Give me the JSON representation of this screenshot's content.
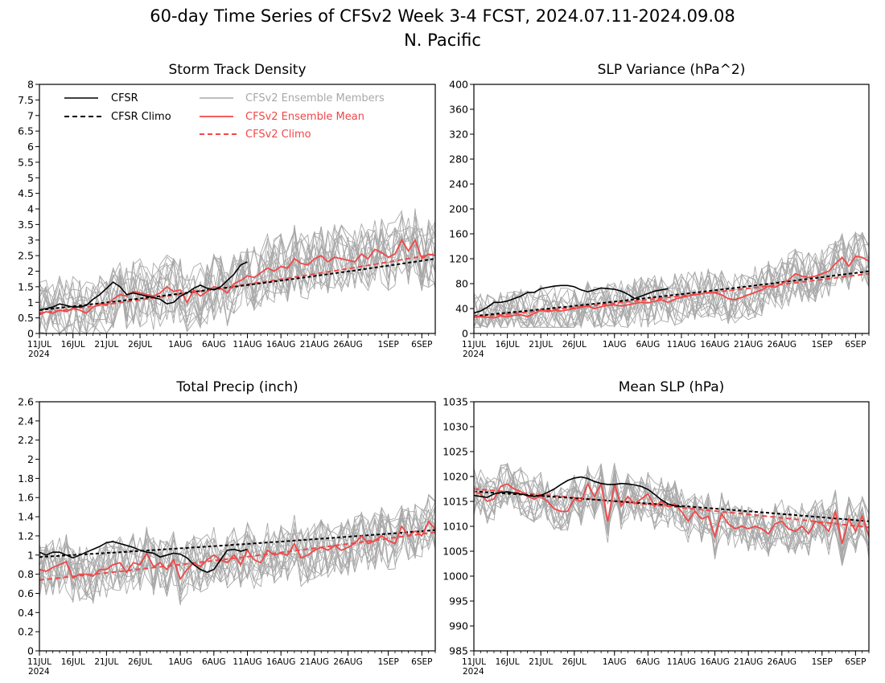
{
  "figure": {
    "title_line1": "60-day Time Series of CFSv2 Week 3-4 FCST, 2024.07.11-2024.09.08",
    "title_line2": "N. Pacific"
  },
  "legend": {
    "cfsr": "CFSR",
    "cfsr_climo": "CFSR Climo",
    "ensemble_members": "CFSv2 Ensemble Members",
    "ensemble_mean": "CFSv2 Ensemble Mean",
    "cfsv2_climo": "CFSv2 Climo"
  },
  "colors": {
    "cfsr": "#000000",
    "climo": "#000000",
    "members": "#a8a8a8",
    "mean": "#f04848",
    "cfsv2_climo": "#f04848"
  },
  "x_axis": {
    "tick_labels": [
      "11JUL",
      "16JUL",
      "21JUL",
      "26JUL",
      "1AUG",
      "6AUG",
      "11AUG",
      "16AUG",
      "21AUG",
      "26AUG",
      "1SEP",
      "6SEP"
    ],
    "tick_days": [
      0,
      5,
      10,
      15,
      21,
      26,
      31,
      36,
      41,
      46,
      52,
      57
    ],
    "year_label": "2024"
  },
  "chart_data": [
    {
      "type": "line",
      "title": "Storm Track Density",
      "x": "daily, 11JUL2024 to 8SEP2024",
      "ylim": [
        0,
        8
      ],
      "yticks": [
        "0",
        "0.5",
        "1",
        "1.5",
        "2",
        "2.5",
        "3",
        "3.5",
        "4",
        "4.5",
        "5",
        "5.5",
        "6",
        "6.5",
        "7",
        "7.5",
        "8"
      ],
      "cfsr": [
        0.75,
        0.8,
        0.85,
        0.95,
        0.9,
        0.85,
        0.85,
        0.9,
        1.1,
        1.25,
        1.45,
        1.65,
        1.5,
        1.25,
        1.3,
        1.25,
        1.2,
        1.15,
        1.1,
        0.95,
        1.0,
        1.2,
        1.3,
        1.45,
        1.55,
        1.45,
        1.4,
        1.5,
        1.7,
        1.9,
        2.2,
        2.3
      ],
      "cfsr_climo_start": 0.75,
      "cfsr_climo_end": 2.4,
      "cfsv2_climo_start": 0.65,
      "cfsv2_climo_end": 2.55,
      "ensemble_mean": [
        0.6,
        0.7,
        0.65,
        0.75,
        0.7,
        0.8,
        0.75,
        0.65,
        0.85,
        0.95,
        0.9,
        1.1,
        1.25,
        1.2,
        1.35,
        1.3,
        1.25,
        1.2,
        1.3,
        1.5,
        1.35,
        1.4,
        1.0,
        1.4,
        1.2,
        1.35,
        1.5,
        1.45,
        1.3,
        1.6,
        1.7,
        1.85,
        1.8,
        1.95,
        2.1,
        2.0,
        2.15,
        2.1,
        2.4,
        2.25,
        2.2,
        2.4,
        2.5,
        2.3,
        2.45,
        2.4,
        2.35,
        2.3,
        2.55,
        2.4,
        2.7,
        2.6,
        2.45,
        2.55,
        3.0,
        2.65,
        3.0,
        2.4,
        2.55,
        2.5
      ],
      "members_range": [
        0.0,
        5.0
      ]
    },
    {
      "type": "line",
      "title": "SLP Variance (hPa^2)",
      "x": "daily, 11JUL2024 to 8SEP2024",
      "ylim": [
        0,
        400
      ],
      "yticks": [
        "0",
        "40",
        "80",
        "120",
        "160",
        "200",
        "240",
        "280",
        "320",
        "360",
        "400"
      ],
      "cfsr": [
        33,
        36,
        42,
        50,
        50,
        52,
        56,
        60,
        66,
        66,
        72,
        74,
        76,
        77,
        77,
        75,
        70,
        67,
        70,
        73,
        72,
        71,
        68,
        63,
        56,
        60,
        64,
        68,
        70,
        72
      ],
      "cfsr_climo_start": 28,
      "cfsr_climo_end": 100,
      "cfsv2_climo_start": 26,
      "cfsv2_climo_end": 96,
      "ensemble_mean": [
        28,
        27,
        26,
        25,
        28,
        27,
        29,
        30,
        27,
        32,
        38,
        35,
        37,
        36,
        38,
        40,
        42,
        44,
        40,
        43,
        45,
        46,
        44,
        46,
        48,
        50,
        49,
        52,
        54,
        50,
        55,
        58,
        60,
        62,
        64,
        66,
        65,
        62,
        56,
        54,
        58,
        62,
        66,
        70,
        76,
        74,
        80,
        86,
        96,
        92,
        90,
        92,
        96,
        100,
        112,
        122,
        108,
        124,
        122,
        116
      ],
      "members_range": [
        10,
        200
      ]
    },
    {
      "type": "line",
      "title": "Total Precip (inch)",
      "x": "daily, 11JUL2024 to 8SEP2024",
      "ylim": [
        0,
        2.6
      ],
      "yticks": [
        "0",
        "0.2",
        "0.4",
        "0.6",
        "0.8",
        "1",
        "1.2",
        "1.4",
        "1.6",
        "1.8",
        "2",
        "2.2",
        "2.4",
        "2.6"
      ],
      "cfsr": [
        1.03,
        1.0,
        1.03,
        1.03,
        1.0,
        0.97,
        1.0,
        1.03,
        1.06,
        1.09,
        1.13,
        1.14,
        1.12,
        1.1,
        1.08,
        1.05,
        1.03,
        1.02,
        0.98,
        1.0,
        1.02,
        1.01,
        0.97,
        0.9,
        0.85,
        0.82,
        0.85,
        0.95,
        1.05,
        1.06,
        1.04,
        1.06
      ],
      "cfsr_climo_start": 0.98,
      "cfsr_climo_end": 1.26,
      "cfsv2_climo_start": 0.74,
      "cfsv2_climo_end": 1.24,
      "ensemble_mean": [
        0.85,
        0.83,
        0.87,
        0.9,
        0.93,
        0.76,
        0.8,
        0.8,
        0.78,
        0.85,
        0.85,
        0.9,
        0.92,
        0.82,
        0.92,
        0.9,
        1.02,
        0.88,
        0.92,
        0.85,
        0.95,
        0.75,
        0.85,
        0.92,
        0.88,
        0.95,
        1.0,
        0.95,
        0.92,
        1.0,
        0.9,
        1.05,
        0.95,
        0.92,
        1.05,
        1.0,
        1.02,
        1.0,
        1.12,
        0.97,
        1.0,
        1.05,
        1.08,
        1.05,
        1.1,
        1.05,
        1.08,
        1.12,
        1.2,
        1.12,
        1.15,
        1.2,
        1.15,
        1.12,
        1.3,
        1.2,
        1.25,
        1.2,
        1.35,
        1.27
      ],
      "members_range": [
        0.38,
        1.75
      ]
    },
    {
      "type": "line",
      "title": "Mean SLP (hPa)",
      "x": "daily, 11JUL2024 to 8SEP2024",
      "ylim": [
        985,
        1035
      ],
      "yticks": [
        "985",
        "990",
        "995",
        "1000",
        "1005",
        "1010",
        "1015",
        "1020",
        "1025",
        "1030",
        "1035"
      ],
      "cfsr": [
        1016.2,
        1016.0,
        1015.8,
        1016.5,
        1016.8,
        1016.9,
        1016.7,
        1016.5,
        1016.2,
        1016.0,
        1016.2,
        1016.8,
        1017.5,
        1018.4,
        1019.2,
        1019.7,
        1019.9,
        1019.6,
        1019.0,
        1018.6,
        1018.4,
        1018.4,
        1018.6,
        1018.5,
        1018.3,
        1018.0,
        1017.4,
        1016.4,
        1015.3,
        1014.5,
        1014.1,
        1013.9
      ],
      "cfsr_climo_start": 1017.0,
      "cfsr_climo_end": 1011.0,
      "cfsv2_climo_start": 1017.5,
      "cfsv2_climo_end": 1009.8,
      "ensemble_mean": [
        1017.0,
        1016.5,
        1015.0,
        1015.5,
        1018.0,
        1018.5,
        1017.5,
        1017.0,
        1016.0,
        1015.5,
        1016.0,
        1015.0,
        1013.5,
        1013.0,
        1013.0,
        1015.5,
        1015.0,
        1018.5,
        1016.0,
        1018.5,
        1011.0,
        1018.5,
        1014.0,
        1016.0,
        1014.5,
        1015.5,
        1016.5,
        1014.0,
        1015.0,
        1014.0,
        1014.5,
        1013.0,
        1011.0,
        1013.0,
        1011.5,
        1012.0,
        1008.0,
        1012.5,
        1010.5,
        1009.5,
        1010.0,
        1009.5,
        1010.0,
        1009.5,
        1008.5,
        1010.5,
        1011.0,
        1009.5,
        1009.0,
        1010.0,
        1008.5,
        1011.0,
        1010.5,
        1009.0,
        1013.0,
        1006.5,
        1011.5,
        1009.0,
        1012.0,
        1008.0
      ],
      "members_range": [
        1002.0,
        1024.0
      ]
    }
  ]
}
